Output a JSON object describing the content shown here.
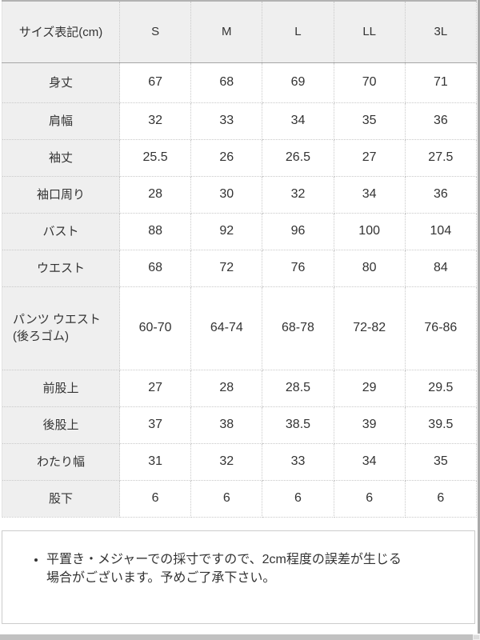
{
  "table": {
    "header": [
      "サイズ表記(cm)",
      "S",
      "M",
      "L",
      "LL",
      "3L"
    ],
    "rows": [
      {
        "label": "身丈",
        "values": [
          "67",
          "68",
          "69",
          "70",
          "71"
        ]
      },
      {
        "label": "肩幅",
        "values": [
          "32",
          "33",
          "34",
          "35",
          "36"
        ]
      },
      {
        "label": "袖丈",
        "values": [
          "25.5",
          "26",
          "26.5",
          "27",
          "27.5"
        ]
      },
      {
        "label": "袖口周り",
        "values": [
          "28",
          "30",
          "32",
          "34",
          "36"
        ]
      },
      {
        "label": "バスト",
        "values": [
          "88",
          "92",
          "96",
          "100",
          "104"
        ]
      },
      {
        "label": "ウエスト",
        "values": [
          "68",
          "72",
          "76",
          "80",
          "84"
        ]
      },
      {
        "label": "パンツ ウエスト\n(後ろゴム)",
        "values": [
          "60-70",
          "64-74",
          "68-78",
          "72-82",
          "76-86"
        ]
      },
      {
        "label": "前股上",
        "values": [
          "27",
          "28",
          "28.5",
          "29",
          "29.5"
        ]
      },
      {
        "label": "後股上",
        "values": [
          "37",
          "38",
          "38.5",
          "39",
          "39.5"
        ]
      },
      {
        "label": "わたり幅",
        "values": [
          "31",
          "32",
          "33",
          "34",
          "35"
        ]
      },
      {
        "label": "股下",
        "values": [
          "6",
          "6",
          "6",
          "6",
          "6"
        ]
      }
    ]
  },
  "note": {
    "text": "平置き・メジャーでの採寸ですので、2cm程度の誤差が生じる\n場合がございます。予めご了承下さい。"
  },
  "colors": {
    "cell_header_bg": "#efefef",
    "dotted_border": "#c9c9c9",
    "solid_border_top": "#b2b2b2",
    "header_underline": "#a6a6a6",
    "text": "#333333",
    "note_border": "#cccccc",
    "scrollbar": "#c1c1c1"
  }
}
